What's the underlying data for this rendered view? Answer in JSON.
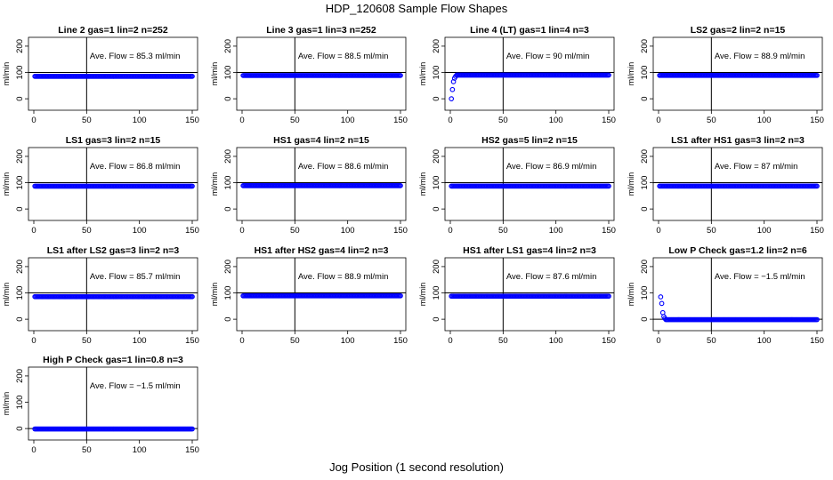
{
  "page": {
    "title": "HDP_120608  Sample Flow Shapes",
    "xlabel": "Jog Position (1 second resolution)"
  },
  "chart_data": [
    {
      "type": "scatter",
      "title": "Line 2 gas=1 lin=2 n=252",
      "ylabel": "ml/min",
      "annotation": "Ave. Flow =  85.3  ml/min",
      "xlim": [
        0,
        150
      ],
      "ylim": [
        -30,
        220
      ],
      "xticks": [
        0,
        50,
        100,
        150
      ],
      "yticks": [
        0,
        100,
        200
      ],
      "hlines": [
        100
      ],
      "vlines": [
        50
      ],
      "series": [
        {
          "shape": "flat",
          "value": 85.3,
          "x_start": 1,
          "x_end": 150
        }
      ],
      "color": "#0000ff"
    },
    {
      "type": "scatter",
      "title": "Line 3 gas=1 lin=3 n=252",
      "ylabel": "ml/min",
      "annotation": "Ave. Flow =  88.5  ml/min",
      "xlim": [
        0,
        150
      ],
      "ylim": [
        -30,
        220
      ],
      "xticks": [
        0,
        50,
        100,
        150
      ],
      "yticks": [
        0,
        100,
        200
      ],
      "hlines": [
        100
      ],
      "vlines": [
        50
      ],
      "series": [
        {
          "shape": "flat",
          "value": 88.5,
          "x_start": 1,
          "x_end": 150
        }
      ],
      "color": "#0000ff"
    },
    {
      "type": "scatter",
      "title": "Line 4 (LT) gas=1 lin=4 n=3",
      "ylabel": "ml/min",
      "annotation": "Ave. Flow =  90  ml/min",
      "xlim": [
        0,
        150
      ],
      "ylim": [
        -30,
        220
      ],
      "xticks": [
        0,
        50,
        100,
        150
      ],
      "yticks": [
        0,
        100,
        200
      ],
      "hlines": [
        100
      ],
      "vlines": [
        50
      ],
      "series": [
        {
          "shape": "ramp",
          "value": 90,
          "x_start": 1,
          "x_end": 150,
          "ramp_points": [
            [
              1,
              0
            ],
            [
              2,
              35
            ],
            [
              3,
              65
            ],
            [
              4,
              78
            ],
            [
              5,
              85
            ]
          ]
        }
      ],
      "color": "#0000ff"
    },
    {
      "type": "scatter",
      "title": "LS2 gas=2 lin=2 n=15",
      "ylabel": "ml/min",
      "annotation": "Ave. Flow =  88.9  ml/min",
      "xlim": [
        0,
        150
      ],
      "ylim": [
        -30,
        220
      ],
      "xticks": [
        0,
        50,
        100,
        150
      ],
      "yticks": [
        0,
        100,
        200
      ],
      "hlines": [
        100
      ],
      "vlines": [
        50
      ],
      "series": [
        {
          "shape": "flat",
          "value": 88.9,
          "x_start": 1,
          "x_end": 150
        }
      ],
      "color": "#0000ff"
    },
    {
      "type": "scatter",
      "title": "LS1 gas=3 lin=2 n=15",
      "ylabel": "ml/min",
      "annotation": "Ave. Flow =  86.8  ml/min",
      "xlim": [
        0,
        150
      ],
      "ylim": [
        -30,
        220
      ],
      "xticks": [
        0,
        50,
        100,
        150
      ],
      "yticks": [
        0,
        100,
        200
      ],
      "hlines": [
        100
      ],
      "vlines": [
        50
      ],
      "series": [
        {
          "shape": "flat",
          "value": 86.8,
          "x_start": 1,
          "x_end": 150
        }
      ],
      "color": "#0000ff"
    },
    {
      "type": "scatter",
      "title": "HS1 gas=4 lin=2 n=15",
      "ylabel": "ml/min",
      "annotation": "Ave. Flow =  88.6  ml/min",
      "xlim": [
        0,
        150
      ],
      "ylim": [
        -30,
        220
      ],
      "xticks": [
        0,
        50,
        100,
        150
      ],
      "yticks": [
        0,
        100,
        200
      ],
      "hlines": [
        100
      ],
      "vlines": [
        50
      ],
      "series": [
        {
          "shape": "flat",
          "value": 88.6,
          "x_start": 1,
          "x_end": 150
        }
      ],
      "color": "#0000ff"
    },
    {
      "type": "scatter",
      "title": "HS2 gas=5 lin=2 n=15",
      "ylabel": "ml/min",
      "annotation": "Ave. Flow =  86.9  ml/min",
      "xlim": [
        0,
        150
      ],
      "ylim": [
        -30,
        220
      ],
      "xticks": [
        0,
        50,
        100,
        150
      ],
      "yticks": [
        0,
        100,
        200
      ],
      "hlines": [
        100
      ],
      "vlines": [
        50
      ],
      "series": [
        {
          "shape": "flat",
          "value": 86.9,
          "x_start": 1,
          "x_end": 150
        }
      ],
      "color": "#0000ff"
    },
    {
      "type": "scatter",
      "title": "LS1 after HS1 gas=3 lin=2 n=3",
      "ylabel": "ml/min",
      "annotation": "Ave. Flow =  87  ml/min",
      "xlim": [
        0,
        150
      ],
      "ylim": [
        -30,
        220
      ],
      "xticks": [
        0,
        50,
        100,
        150
      ],
      "yticks": [
        0,
        100,
        200
      ],
      "hlines": [
        100
      ],
      "vlines": [
        50
      ],
      "series": [
        {
          "shape": "flat",
          "value": 87,
          "x_start": 1,
          "x_end": 150
        }
      ],
      "color": "#0000ff"
    },
    {
      "type": "scatter",
      "title": "LS1 after LS2 gas=3 lin=2 n=3",
      "ylabel": "ml/min",
      "annotation": "Ave. Flow =  85.7  ml/min",
      "xlim": [
        0,
        150
      ],
      "ylim": [
        -30,
        220
      ],
      "xticks": [
        0,
        50,
        100,
        150
      ],
      "yticks": [
        0,
        100,
        200
      ],
      "hlines": [
        100
      ],
      "vlines": [
        50
      ],
      "series": [
        {
          "shape": "flat",
          "value": 85.7,
          "x_start": 1,
          "x_end": 150
        }
      ],
      "color": "#0000ff"
    },
    {
      "type": "scatter",
      "title": "HS1 after HS2 gas=4 lin=2 n=3",
      "ylabel": "ml/min",
      "annotation": "Ave. Flow =  88.9  ml/min",
      "xlim": [
        0,
        150
      ],
      "ylim": [
        -30,
        220
      ],
      "xticks": [
        0,
        50,
        100,
        150
      ],
      "yticks": [
        0,
        100,
        200
      ],
      "hlines": [
        100
      ],
      "vlines": [
        50
      ],
      "series": [
        {
          "shape": "flat",
          "value": 88.9,
          "x_start": 1,
          "x_end": 150
        }
      ],
      "color": "#0000ff"
    },
    {
      "type": "scatter",
      "title": "HS1 after LS1 gas=4 lin=2 n=3",
      "ylabel": "ml/min",
      "annotation": "Ave. Flow =  87.6  ml/min",
      "xlim": [
        0,
        150
      ],
      "ylim": [
        -30,
        220
      ],
      "xticks": [
        0,
        50,
        100,
        150
      ],
      "yticks": [
        0,
        100,
        200
      ],
      "hlines": [
        100
      ],
      "vlines": [
        50
      ],
      "series": [
        {
          "shape": "flat",
          "value": 87.6,
          "x_start": 1,
          "x_end": 150
        }
      ],
      "color": "#0000ff"
    },
    {
      "type": "scatter",
      "title": "Low P Check gas=1.2 lin=2 n=6",
      "ylabel": "ml/min",
      "annotation": "Ave. Flow =  −1.5  ml/min",
      "xlim": [
        0,
        150
      ],
      "ylim": [
        -30,
        220
      ],
      "xticks": [
        0,
        50,
        100,
        150
      ],
      "yticks": [
        0,
        100,
        200
      ],
      "hlines": [
        0
      ],
      "vlines": [
        50
      ],
      "series": [
        {
          "shape": "decay",
          "value": -1.5,
          "x_start": 1,
          "x_end": 150,
          "ramp_points": [
            [
              2,
              85
            ],
            [
              3,
              60
            ],
            [
              4,
              25
            ],
            [
              5,
              10
            ],
            [
              6,
              3
            ]
          ]
        }
      ],
      "color": "#0000ff"
    },
    {
      "type": "scatter",
      "title": "High P Check gas=1 lin=0.8 n=3",
      "ylabel": "ml/min",
      "annotation": "Ave. Flow =  −1.5  ml/min",
      "xlim": [
        0,
        150
      ],
      "ylim": [
        -30,
        220
      ],
      "xticks": [
        0,
        50,
        100,
        150
      ],
      "yticks": [
        0,
        100,
        200
      ],
      "hlines": [
        0
      ],
      "vlines": [
        50
      ],
      "series": [
        {
          "shape": "flat",
          "value": -1.5,
          "x_start": 1,
          "x_end": 150
        }
      ],
      "color": "#0000ff"
    }
  ]
}
